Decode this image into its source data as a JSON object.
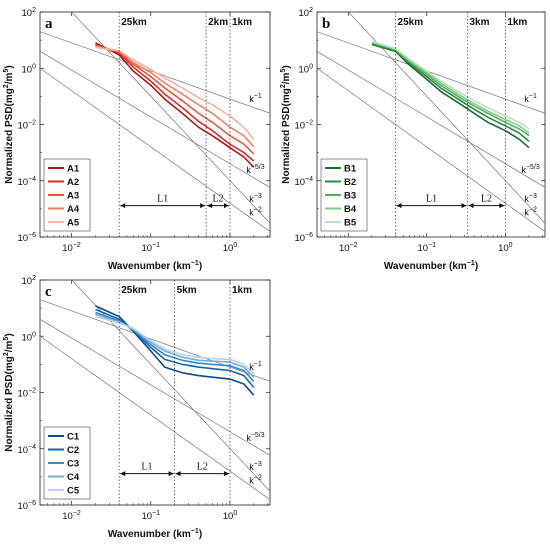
{
  "chart_data": [
    {
      "panel_id": "a",
      "type": "line",
      "panel_label": "a",
      "xlabel": "Wavenumber (km",
      "xlabel_exp": "−1",
      "xlabel_close": ")",
      "ylabel": "Normalized PSD(mg",
      "ylabel_exp1": "2",
      "ylabel_mid": "/m",
      "ylabel_exp2": "5",
      "ylabel_close": ")",
      "xscale": "log",
      "yscale": "log",
      "xlim": [
        0.004,
        3.2
      ],
      "ylim": [
        1e-06,
        100
      ],
      "xticks": [
        {
          "v": 0.01,
          "m": "10",
          "e": "−2"
        },
        {
          "v": 0.1,
          "m": "10",
          "e": "−1"
        },
        {
          "v": 1,
          "m": "10",
          "e": "0"
        }
      ],
      "yticks": [
        {
          "v": 1e-06,
          "m": "10",
          "e": "−6"
        },
        {
          "v": 0.0001,
          "m": "10",
          "e": "−4"
        },
        {
          "v": 0.01,
          "m": "10",
          "e": "−2"
        },
        {
          "v": 1,
          "m": "10",
          "e": "0"
        },
        {
          "v": 100,
          "m": "10",
          "e": "2"
        }
      ],
      "scale_lines": [
        {
          "x": 0.04,
          "label": "25km"
        },
        {
          "x": 0.5,
          "label": "2km"
        },
        {
          "x": 1.0,
          "label": "1km"
        }
      ],
      "ranges": [
        {
          "label": "L1",
          "x0": 0.04,
          "x1": 0.5,
          "y": 1.3e-05
        },
        {
          "label": "L2",
          "x0": 0.5,
          "x1": 1.0,
          "y": 1.3e-05
        }
      ],
      "ref_lines": [
        {
          "label": "k",
          "exp": "−1",
          "slope": -1,
          "anchor": [
            0.004,
            20
          ]
        },
        {
          "label": "k",
          "exp": "−5/3",
          "slope": -1.6667,
          "anchor": [
            0.004,
            4
          ]
        },
        {
          "label": "k",
          "exp": "−2",
          "slope": -2,
          "anchor": [
            0.004,
            1
          ]
        },
        {
          "label": "k",
          "exp": "−3",
          "slope": -3,
          "anchor": [
            0.015,
            30
          ]
        }
      ],
      "legend_position": "lower-left",
      "series": [
        {
          "name": "A1",
          "color": "#b01616",
          "x": [
            0.02,
            0.04,
            0.06,
            0.1,
            0.15,
            0.25,
            0.4,
            0.6,
            1.0,
            1.5,
            2.0
          ],
          "y": [
            8,
            3,
            0.8,
            0.25,
            0.08,
            0.025,
            0.008,
            0.004,
            0.0015,
            0.0007,
            0.0003
          ]
        },
        {
          "name": "A2",
          "color": "#d32f2f",
          "x": [
            0.02,
            0.04,
            0.06,
            0.1,
            0.15,
            0.25,
            0.4,
            0.6,
            1.0,
            1.5,
            2.0
          ],
          "y": [
            7,
            3.5,
            1.1,
            0.35,
            0.12,
            0.04,
            0.013,
            0.006,
            0.002,
            0.001,
            0.0005
          ]
        },
        {
          "name": "A3",
          "color": "#e35a3e",
          "x": [
            0.02,
            0.04,
            0.06,
            0.1,
            0.15,
            0.25,
            0.4,
            0.6,
            1.0,
            1.5,
            2.0
          ],
          "y": [
            6.5,
            3.8,
            1.4,
            0.5,
            0.2,
            0.07,
            0.025,
            0.012,
            0.004,
            0.002,
            0.0009
          ]
        },
        {
          "name": "A4",
          "color": "#f08060",
          "x": [
            0.02,
            0.04,
            0.06,
            0.1,
            0.15,
            0.25,
            0.4,
            0.6,
            1.0,
            1.5,
            2.0
          ],
          "y": [
            6,
            4,
            1.6,
            0.7,
            0.3,
            0.12,
            0.05,
            0.025,
            0.008,
            0.004,
            0.0016
          ]
        },
        {
          "name": "A5",
          "color": "#f7b2a0",
          "x": [
            0.02,
            0.04,
            0.06,
            0.1,
            0.15,
            0.25,
            0.4,
            0.6,
            1.0,
            1.5,
            2.0
          ],
          "y": [
            5.5,
            4.2,
            2.0,
            0.9,
            0.45,
            0.2,
            0.09,
            0.05,
            0.02,
            0.008,
            0.003
          ]
        }
      ]
    },
    {
      "panel_id": "b",
      "type": "line",
      "panel_label": "b",
      "xlabel": "Wavenumber (km",
      "xlabel_exp": "−1",
      "xlabel_close": ")",
      "ylabel": "Normalized PSD(mg",
      "ylabel_exp1": "2",
      "ylabel_mid": "/m",
      "ylabel_exp2": "5",
      "ylabel_close": ")",
      "xscale": "log",
      "yscale": "log",
      "xlim": [
        0.004,
        3.2
      ],
      "ylim": [
        1e-06,
        100
      ],
      "xticks": [
        {
          "v": 0.01,
          "m": "10",
          "e": "−2"
        },
        {
          "v": 0.1,
          "m": "10",
          "e": "−1"
        },
        {
          "v": 1,
          "m": "10",
          "e": "0"
        }
      ],
      "yticks": [
        {
          "v": 1e-06,
          "m": "10",
          "e": "−6"
        },
        {
          "v": 0.0001,
          "m": "10",
          "e": "−4"
        },
        {
          "v": 0.01,
          "m": "10",
          "e": "−2"
        },
        {
          "v": 1,
          "m": "10",
          "e": "0"
        },
        {
          "v": 100,
          "m": "10",
          "e": "2"
        }
      ],
      "scale_lines": [
        {
          "x": 0.04,
          "label": "25km"
        },
        {
          "x": 0.33,
          "label": "3km"
        },
        {
          "x": 1.0,
          "label": "1km"
        }
      ],
      "ranges": [
        {
          "label": "L1",
          "x0": 0.04,
          "x1": 0.33,
          "y": 1.3e-05
        },
        {
          "label": "L2",
          "x0": 0.33,
          "x1": 1.0,
          "y": 1.3e-05
        }
      ],
      "ref_lines": [
        {
          "label": "k",
          "exp": "−1",
          "slope": -1,
          "anchor": [
            0.004,
            20
          ]
        },
        {
          "label": "k",
          "exp": "−5/3",
          "slope": -1.6667,
          "anchor": [
            0.004,
            4
          ]
        },
        {
          "label": "k",
          "exp": "−2",
          "slope": -2,
          "anchor": [
            0.004,
            1
          ]
        },
        {
          "label": "k",
          "exp": "−3",
          "slope": -3,
          "anchor": [
            0.015,
            30
          ]
        }
      ],
      "legend_position": "lower-left",
      "series": [
        {
          "name": "B1",
          "color": "#1b6e2c",
          "x": [
            0.02,
            0.04,
            0.06,
            0.1,
            0.15,
            0.25,
            0.4,
            0.6,
            1.0,
            1.5,
            2.0
          ],
          "y": [
            7,
            4,
            1.3,
            0.4,
            0.15,
            0.06,
            0.025,
            0.012,
            0.006,
            0.003,
            0.0015
          ]
        },
        {
          "name": "B2",
          "color": "#2e8b3d",
          "x": [
            0.02,
            0.04,
            0.06,
            0.1,
            0.15,
            0.25,
            0.4,
            0.6,
            1.0,
            1.5,
            2.0
          ],
          "y": [
            7.5,
            4.2,
            1.5,
            0.5,
            0.2,
            0.08,
            0.035,
            0.018,
            0.009,
            0.005,
            0.0025
          ]
        },
        {
          "name": "B3",
          "color": "#55b061",
          "x": [
            0.02,
            0.04,
            0.06,
            0.1,
            0.15,
            0.25,
            0.4,
            0.6,
            1.0,
            1.5,
            2.0
          ],
          "y": [
            8,
            4.5,
            1.7,
            0.6,
            0.25,
            0.1,
            0.045,
            0.025,
            0.012,
            0.007,
            0.004
          ]
        },
        {
          "name": "B4",
          "color": "#86c98e",
          "x": [
            0.02,
            0.04,
            0.06,
            0.1,
            0.15,
            0.25,
            0.4,
            0.6,
            1.0,
            1.5,
            2.0
          ],
          "y": [
            8.5,
            4.8,
            1.9,
            0.7,
            0.3,
            0.12,
            0.055,
            0.03,
            0.015,
            0.009,
            0.005
          ]
        },
        {
          "name": "B5",
          "color": "#b9e3be",
          "x": [
            0.02,
            0.04,
            0.06,
            0.1,
            0.15,
            0.25,
            0.4,
            0.6,
            1.0,
            1.5,
            2.0
          ],
          "y": [
            9,
            5,
            2.1,
            0.8,
            0.35,
            0.15,
            0.07,
            0.04,
            0.02,
            0.012,
            0.007
          ]
        }
      ]
    },
    {
      "panel_id": "c",
      "type": "line",
      "panel_label": "c",
      "xlabel": "Wavenumber (km",
      "xlabel_exp": "−1",
      "xlabel_close": ")",
      "ylabel": "Normalized PSD(mg",
      "ylabel_exp1": "2",
      "ylabel_mid": "/m",
      "ylabel_exp2": "5",
      "ylabel_close": ")",
      "xscale": "log",
      "yscale": "log",
      "xlim": [
        0.004,
        3.2
      ],
      "ylim": [
        1e-06,
        100
      ],
      "xticks": [
        {
          "v": 0.01,
          "m": "10",
          "e": "−2"
        },
        {
          "v": 0.1,
          "m": "10",
          "e": "−1"
        },
        {
          "v": 1,
          "m": "10",
          "e": "0"
        }
      ],
      "yticks": [
        {
          "v": 1e-06,
          "m": "10",
          "e": "−6"
        },
        {
          "v": 0.0001,
          "m": "10",
          "e": "−4"
        },
        {
          "v": 0.01,
          "m": "10",
          "e": "−2"
        },
        {
          "v": 1,
          "m": "10",
          "e": "0"
        },
        {
          "v": 100,
          "m": "10",
          "e": "2"
        }
      ],
      "scale_lines": [
        {
          "x": 0.04,
          "label": "25km"
        },
        {
          "x": 0.2,
          "label": "5km"
        },
        {
          "x": 1.0,
          "label": "1km"
        }
      ],
      "ranges": [
        {
          "label": "L1",
          "x0": 0.04,
          "x1": 0.2,
          "y": 1.3e-05
        },
        {
          "label": "L2",
          "x0": 0.2,
          "x1": 1.0,
          "y": 1.3e-05
        }
      ],
      "ref_lines": [
        {
          "label": "k",
          "exp": "−1",
          "slope": -1,
          "anchor": [
            0.004,
            20
          ]
        },
        {
          "label": "k",
          "exp": "−5/3",
          "slope": -1.6667,
          "anchor": [
            0.004,
            4
          ]
        },
        {
          "label": "k",
          "exp": "−2",
          "slope": -2,
          "anchor": [
            0.004,
            1
          ]
        },
        {
          "label": "k",
          "exp": "−3",
          "slope": -3,
          "anchor": [
            0.015,
            30
          ]
        }
      ],
      "legend_position": "lower-left",
      "series": [
        {
          "name": "C1",
          "color": "#0d4a8a",
          "x": [
            0.02,
            0.04,
            0.06,
            0.1,
            0.15,
            0.25,
            0.4,
            0.6,
            1.0,
            1.5,
            2.0
          ],
          "y": [
            12,
            5,
            1.5,
            0.3,
            0.08,
            0.05,
            0.04,
            0.035,
            0.03,
            0.02,
            0.008
          ]
        },
        {
          "name": "C2",
          "color": "#1a64ad",
          "x": [
            0.02,
            0.04,
            0.06,
            0.1,
            0.15,
            0.25,
            0.4,
            0.6,
            1.0,
            1.5,
            2.0
          ],
          "y": [
            9,
            4,
            1.6,
            0.4,
            0.15,
            0.1,
            0.08,
            0.07,
            0.06,
            0.04,
            0.015
          ]
        },
        {
          "name": "C3",
          "color": "#3d86c6",
          "x": [
            0.02,
            0.04,
            0.06,
            0.1,
            0.15,
            0.25,
            0.4,
            0.6,
            1.0,
            1.5,
            2.0
          ],
          "y": [
            7,
            3.5,
            1.7,
            0.5,
            0.22,
            0.14,
            0.11,
            0.1,
            0.09,
            0.06,
            0.025
          ]
        },
        {
          "name": "C4",
          "color": "#78acd9",
          "x": [
            0.02,
            0.04,
            0.06,
            0.1,
            0.15,
            0.25,
            0.4,
            0.6,
            1.0,
            1.5,
            2.0
          ],
          "y": [
            6,
            3.2,
            1.8,
            0.6,
            0.3,
            0.18,
            0.14,
            0.13,
            0.12,
            0.08,
            0.035
          ]
        },
        {
          "name": "C5",
          "color": "#b7d3ec",
          "x": [
            0.02,
            0.04,
            0.06,
            0.1,
            0.15,
            0.25,
            0.4,
            0.6,
            1.0,
            1.5,
            2.0
          ],
          "y": [
            5,
            3,
            1.9,
            0.7,
            0.35,
            0.22,
            0.18,
            0.16,
            0.15,
            0.1,
            0.045
          ]
        }
      ]
    }
  ]
}
